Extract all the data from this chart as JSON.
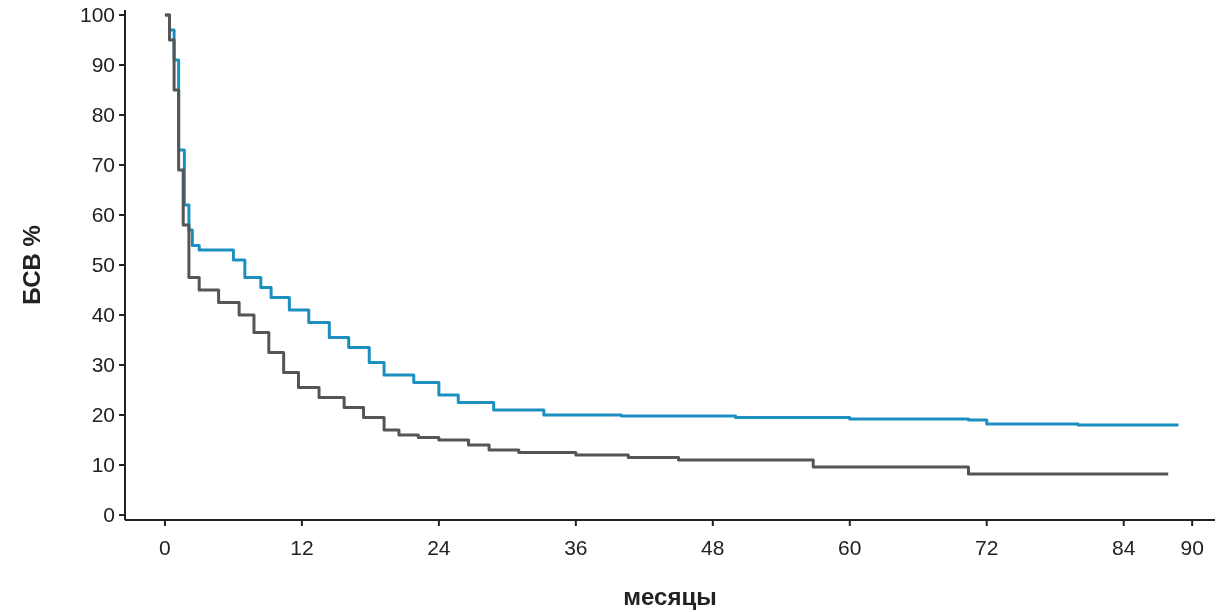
{
  "chart_data": {
    "type": "step",
    "xlabel": "месяцы",
    "ylabel": "БСВ %",
    "xlim": [
      -3.5,
      92
    ],
    "ylim": [
      -1,
      101
    ],
    "xticks": [
      0,
      12,
      24,
      36,
      48,
      60,
      72,
      84,
      90
    ],
    "yticks": [
      0,
      10,
      20,
      30,
      40,
      50,
      60,
      70,
      80,
      90,
      100
    ],
    "grid": false,
    "marker": "none",
    "line_style": "solid",
    "series": [
      {
        "color": "#1a8fc0",
        "x": [
          0,
          0.4,
          0.8,
          1.2,
          1.7,
          2.1,
          2.4,
          3,
          6,
          7,
          8.4,
          9.3,
          10.9,
          12.6,
          14.4,
          16.1,
          17.9,
          19.2,
          21.8,
          24,
          25.7,
          28.8,
          31,
          33.2,
          40,
          50,
          60,
          70.4,
          72,
          80,
          88.8
        ],
        "values": [
          100,
          97,
          91,
          73,
          62,
          57,
          53.9,
          53,
          51,
          47.5,
          45.5,
          43.5,
          41,
          38.5,
          35.5,
          33.5,
          30.5,
          28,
          26.5,
          24,
          22.5,
          21,
          21,
          20,
          19.8,
          19.5,
          19.2,
          19,
          18.2,
          18,
          18
        ]
      },
      {
        "color": "#555555",
        "x": [
          0,
          0.4,
          0.8,
          1.2,
          1.6,
          2.1,
          3,
          4.7,
          6.5,
          7.8,
          9.1,
          10.4,
          11.7,
          13.5,
          15.7,
          17.4,
          19.2,
          20.5,
          22.2,
          24,
          26.6,
          28.4,
          31,
          36,
          40.6,
          45,
          56.8,
          70.4,
          80,
          87.9
        ],
        "values": [
          100,
          95,
          85,
          69,
          58,
          47.5,
          45,
          42.5,
          40,
          36.5,
          32.5,
          28.5,
          25.5,
          23.5,
          21.5,
          19.5,
          17,
          16,
          15.5,
          15,
          14,
          13,
          12.5,
          12,
          11.5,
          11,
          9.6,
          8.2,
          8.2,
          8.2
        ]
      }
    ]
  }
}
